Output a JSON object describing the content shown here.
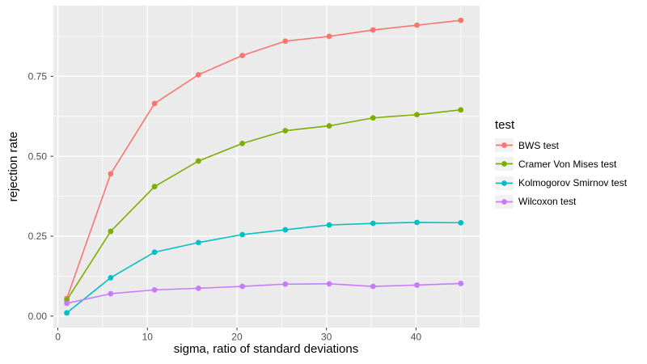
{
  "figure": {
    "background": "#FFFFFF"
  },
  "chart_data": {
    "type": "line",
    "title": "",
    "xlabel": "sigma, ratio of standard deviations",
    "ylabel": "rejection rate",
    "legend_title": "test",
    "legend_position": "right",
    "panel_bg": "#EBEBEB",
    "grid_color": "#FFFFFF",
    "axis_text_color": "#4D4D4D",
    "tick_mark_color": "#333333",
    "grid_on": true,
    "xlim": [
      -0.5,
      47.1
    ],
    "ylim": [
      -0.036,
      0.971
    ],
    "x": [
      1,
      5.9,
      10.8,
      15.7,
      20.6,
      25.4,
      30.3,
      35.2,
      40.1,
      45
    ],
    "x_ticks": {
      "values": [
        0,
        10,
        20,
        30,
        40
      ],
      "labels": [
        "0",
        "10",
        "20",
        "30",
        "40"
      ]
    },
    "x_minor": [
      5,
      15,
      25,
      35,
      45
    ],
    "y_ticks": {
      "values": [
        0,
        0.25,
        0.5,
        0.75
      ],
      "labels": [
        "0.00",
        "0.25",
        "0.50",
        "0.75"
      ]
    },
    "y_minor": [
      0.125,
      0.375,
      0.625,
      0.875
    ],
    "series": [
      {
        "name": "BWS test",
        "color": "#F8766D",
        "values": [
          0.055,
          0.445,
          0.665,
          0.755,
          0.815,
          0.86,
          0.875,
          0.895,
          0.91,
          0.925
        ]
      },
      {
        "name": "Cramer Von Mises test",
        "color": "#7CAE00",
        "values": [
          0.05,
          0.265,
          0.405,
          0.485,
          0.54,
          0.58,
          0.595,
          0.62,
          0.63,
          0.645
        ]
      },
      {
        "name": "Kolmogorov Smirnov test",
        "color": "#00BFC4",
        "values": [
          0.01,
          0.12,
          0.2,
          0.23,
          0.255,
          0.27,
          0.285,
          0.29,
          0.293,
          0.292
        ]
      },
      {
        "name": "Wilcoxon test",
        "color": "#C77CFF",
        "values": [
          0.04,
          0.07,
          0.082,
          0.087,
          0.093,
          0.1,
          0.101,
          0.093,
          0.097,
          0.102
        ]
      }
    ]
  }
}
